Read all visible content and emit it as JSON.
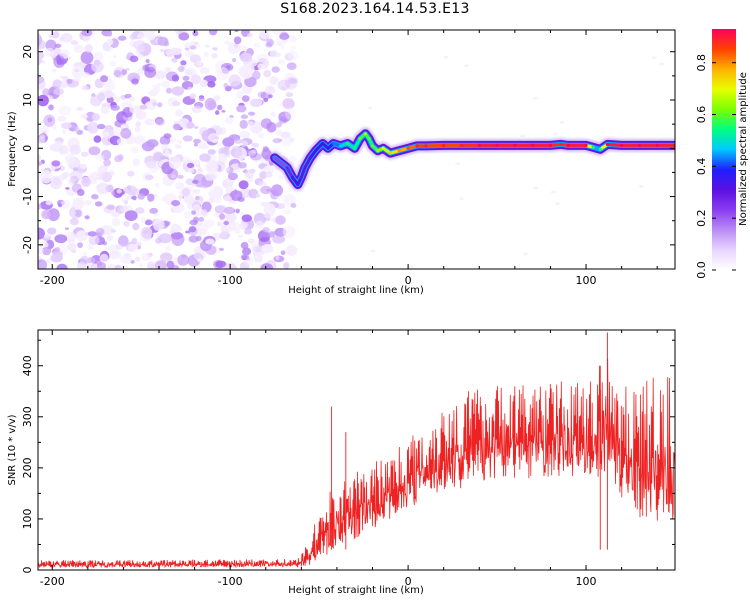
{
  "title": "S168.2023.164.14.53.E13",
  "chart_data": [
    {
      "type": "heatmap",
      "xlabel": "Height of straight line (km)",
      "ylabel": "Frequency (Hz)",
      "xlim": [
        -208,
        150
      ],
      "ylim": [
        -25,
        24.5
      ],
      "x_ticks": [
        -200,
        -100,
        0,
        100
      ],
      "x_tick_labels": [
        "-200",
        "-100",
        "0",
        "100"
      ],
      "y_ticks": [
        -20,
        -10,
        0,
        10,
        20
      ],
      "y_tick_labels": [
        "-20",
        "-10",
        "0",
        "10",
        "20"
      ],
      "colorbar": {
        "label": "Normalized spectral amplitude",
        "range": [
          0,
          0.93
        ],
        "ticks": [
          0.0,
          0.2,
          0.4,
          0.6,
          0.8
        ],
        "tick_labels": [
          "0.0",
          "0.2",
          "0.4",
          "0.6",
          "0.8"
        ],
        "colors": [
          "#ffffff",
          "#e8d4ff",
          "#b98cf5",
          "#8a3cf0",
          "#5a10e0",
          "#2020ff",
          "#00c8ff",
          "#00ff80",
          "#7cff00",
          "#e8ff00",
          "#ffb000",
          "#ff4000",
          "#ff0060"
        ]
      },
      "noise_region": {
        "x_range": [
          -208,
          -66
        ],
        "y_range": [
          -25,
          24.5
        ],
        "peak_amplitude": 0.2
      },
      "ridge": {
        "x": [
          -75,
          -68,
          -65,
          -62,
          -60,
          -58,
          -55,
          -52,
          -48,
          -45,
          -42,
          -38,
          -34,
          -30,
          -27,
          -24,
          -22,
          -20,
          -17,
          -14,
          -10,
          -5,
          0,
          5,
          10,
          20,
          30,
          40,
          50,
          60,
          70,
          80,
          86,
          90,
          100,
          104,
          106,
          108,
          112,
          120,
          130,
          140,
          150
        ],
        "y": [
          -2,
          -4,
          -6,
          -7.5,
          -6,
          -4,
          -2,
          -0.5,
          1,
          0,
          1,
          0.5,
          1,
          0,
          2,
          3,
          2,
          0.5,
          -0.5,
          0,
          -1,
          -0.5,
          0,
          0.5,
          0.5,
          0.6,
          0.6,
          0.6,
          0.6,
          0.6,
          0.6,
          0.6,
          0.8,
          0.6,
          0.6,
          0.2,
          0,
          -0.2,
          0.8,
          0.6,
          0.6,
          0.6,
          0.6
        ],
        "amplitude": [
          0.2,
          0.25,
          0.3,
          0.35,
          0.3,
          0.3,
          0.3,
          0.35,
          0.35,
          0.35,
          0.4,
          0.45,
          0.5,
          0.5,
          0.55,
          0.6,
          0.55,
          0.55,
          0.6,
          0.65,
          0.7,
          0.75,
          0.8,
          0.85,
          0.85,
          0.85,
          0.85,
          0.9,
          0.9,
          0.9,
          0.9,
          0.9,
          0.85,
          0.9,
          0.9,
          0.5,
          0.4,
          0.5,
          0.9,
          0.9,
          0.9,
          0.9,
          0.9
        ]
      }
    },
    {
      "type": "line",
      "xlabel": "Height of straight line (km)",
      "ylabel": "SNR (10 * v/v)",
      "xlim": [
        -208,
        150
      ],
      "ylim": [
        0,
        470
      ],
      "x_ticks": [
        -200,
        -100,
        0,
        100
      ],
      "x_tick_labels": [
        "-200",
        "-100",
        "0",
        "100"
      ],
      "y_ticks": [
        0,
        100,
        200,
        300,
        400
      ],
      "y_tick_labels": [
        "0",
        "100",
        "200",
        "300",
        "400"
      ],
      "color": "#ee2222",
      "envelope": {
        "x": [
          -208,
          -140,
          -62,
          -55,
          -50,
          -45,
          -40,
          -30,
          -20,
          -10,
          0,
          10,
          20,
          30,
          40,
          50,
          70,
          90,
          105,
          110,
          120,
          130,
          150
        ],
        "upper": [
          20,
          20,
          22,
          60,
          120,
          150,
          170,
          190,
          210,
          230,
          260,
          290,
          330,
          350,
          360,
          365,
          370,
          370,
          370,
          465,
          375,
          375,
          380
        ],
        "lower": [
          5,
          5,
          5,
          10,
          20,
          30,
          40,
          60,
          80,
          100,
          120,
          140,
          150,
          160,
          170,
          175,
          180,
          180,
          180,
          180,
          140,
          100,
          80
        ]
      },
      "spikes": [
        {
          "x": -43,
          "y": 320
        },
        {
          "x": -35,
          "y": 270
        },
        {
          "x": 108,
          "y": 400
        },
        {
          "x": 112,
          "y": 465
        }
      ]
    }
  ]
}
